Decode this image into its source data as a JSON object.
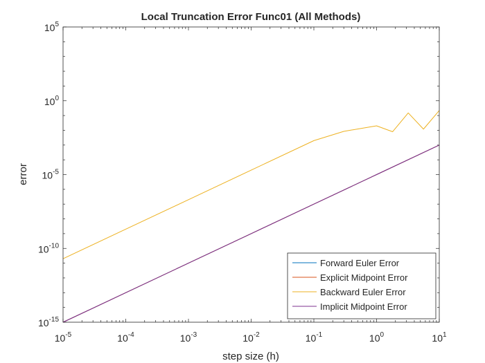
{
  "chart_data": {
    "type": "line",
    "title": "Local Truncation Error Func01 (All Methods)",
    "xlabel": "step size (h)",
    "ylabel": "error",
    "xscale": "log",
    "yscale": "log",
    "xlim": [
      1e-05,
      10
    ],
    "ylim": [
      1e-15,
      100000
    ],
    "grid": false,
    "legend_position": "bottom-right",
    "x_ticks": [
      {
        "value": 1e-05,
        "base": "10",
        "exp": "-5"
      },
      {
        "value": 0.0001,
        "base": "10",
        "exp": "-4"
      },
      {
        "value": 0.001,
        "base": "10",
        "exp": "-3"
      },
      {
        "value": 0.01,
        "base": "10",
        "exp": "-2"
      },
      {
        "value": 0.1,
        "base": "10",
        "exp": "-1"
      },
      {
        "value": 1,
        "base": "10",
        "exp": "0"
      },
      {
        "value": 10,
        "base": "10",
        "exp": "1"
      }
    ],
    "y_ticks": [
      {
        "value": 1e-15,
        "base": "10",
        "exp": "-15"
      },
      {
        "value": 1e-10,
        "base": "10",
        "exp": "-10"
      },
      {
        "value": 1e-05,
        "base": "10",
        "exp": "-5"
      },
      {
        "value": 1,
        "base": "10",
        "exp": "0"
      },
      {
        "value": 100000,
        "base": "10",
        "exp": "5"
      }
    ],
    "series": [
      {
        "name": "Forward Euler Error",
        "color": "#0072BD",
        "points": [
          [
            1e-05,
            1e-15
          ],
          [
            0.0001,
            1e-13
          ],
          [
            0.001,
            1e-11
          ],
          [
            0.01,
            1e-09
          ],
          [
            0.1,
            1e-07
          ],
          [
            1,
            1e-05
          ],
          [
            10,
            0.001
          ]
        ]
      },
      {
        "name": "Explicit Midpoint Error",
        "color": "#D95319",
        "points": [
          [
            1e-05,
            1e-15
          ],
          [
            0.0001,
            1e-13
          ],
          [
            0.001,
            1e-11
          ],
          [
            0.01,
            1e-09
          ],
          [
            0.1,
            1e-07
          ],
          [
            1,
            1e-05
          ],
          [
            10,
            0.001
          ]
        ]
      },
      {
        "name": "Backward Euler Error",
        "color": "#EDB120",
        "points": [
          [
            1e-05,
            2e-11
          ],
          [
            0.0001,
            2e-09
          ],
          [
            0.001,
            2e-07
          ],
          [
            0.01,
            2e-05
          ],
          [
            0.1,
            0.002
          ],
          [
            0.3,
            0.0085
          ],
          [
            0.6,
            0.014
          ],
          [
            1,
            0.02
          ],
          [
            1.8,
            0.008
          ],
          [
            3.2,
            0.15
          ],
          [
            5.6,
            0.012
          ],
          [
            10,
            0.22
          ]
        ]
      },
      {
        "name": "Implicit Midpoint Error",
        "color": "#7E2F8E",
        "points": [
          [
            1e-05,
            1e-15
          ],
          [
            0.0001,
            1e-13
          ],
          [
            0.001,
            1e-11
          ],
          [
            0.01,
            1e-09
          ],
          [
            0.1,
            1e-07
          ],
          [
            1,
            1e-05
          ],
          [
            10,
            0.001
          ]
        ]
      }
    ]
  }
}
